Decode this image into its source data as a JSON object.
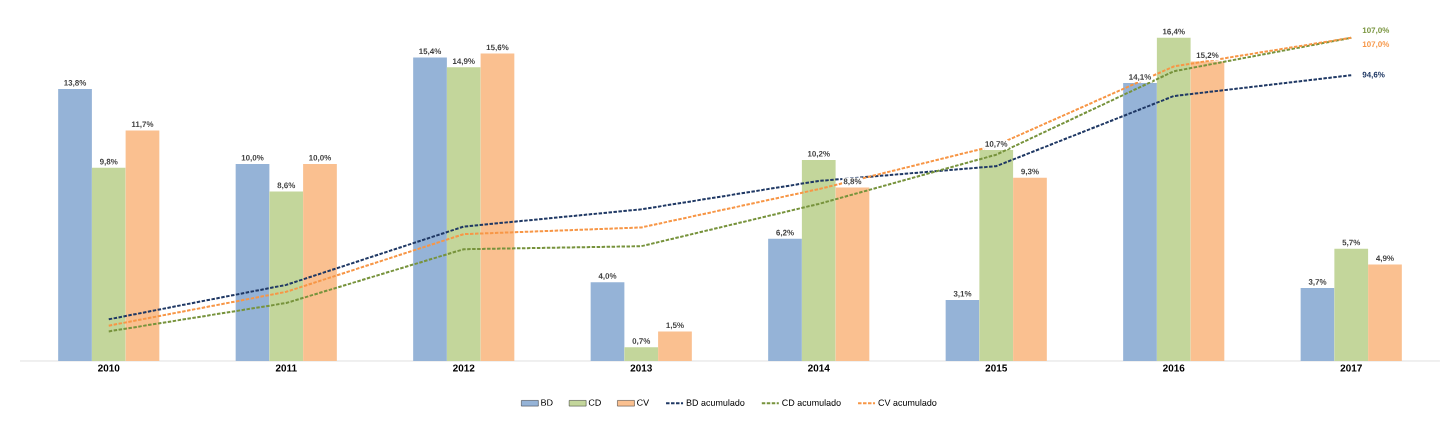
{
  "chart_data": {
    "type": "bar",
    "categories": [
      "2010",
      "2011",
      "2012",
      "2013",
      "2014",
      "2015",
      "2016",
      "2017"
    ],
    "series": [
      {
        "name": "BD",
        "color": "#95b3d7",
        "values": [
          13.8,
          10.0,
          15.4,
          4.0,
          6.2,
          3.1,
          14.1,
          3.7
        ],
        "value_labels": [
          "13,8%",
          "10,0%",
          "15,4%",
          "4,0%",
          "6,2%",
          "3,1%",
          "14,1%",
          "3,7%"
        ]
      },
      {
        "name": "CD",
        "color": "#c3d69b",
        "values": [
          9.8,
          8.6,
          14.9,
          0.7,
          10.2,
          10.7,
          16.4,
          5.7
        ],
        "value_labels": [
          "9,8%",
          "8,6%",
          "14,9%",
          "0,7%",
          "10,2%",
          "10,7%",
          "16,4%",
          "5,7%"
        ]
      },
      {
        "name": "CV",
        "color": "#fac090",
        "values": [
          11.7,
          10.0,
          15.6,
          1.5,
          8.8,
          9.3,
          15.2,
          4.9
        ],
        "value_labels": [
          "11,7%",
          "10,0%",
          "15,6%",
          "1,5%",
          "8,8%",
          "9,3%",
          "15,2%",
          "4,9%"
        ]
      },
      {
        "name": "BD acumulado",
        "type": "line",
        "axis": "y2",
        "line_style": "dashed",
        "color": "#1f3864",
        "values": [
          13.8,
          25.2,
          44.5,
          50.2,
          59.6,
          64.5,
          87.7,
          94.6
        ],
        "value_labels": [
          null,
          null,
          null,
          null,
          null,
          null,
          null,
          "94,6%"
        ]
      },
      {
        "name": "CD acumulado",
        "type": "line",
        "axis": "y2",
        "line_style": "dashed",
        "color": "#77933c",
        "values": [
          9.8,
          19.2,
          37.0,
          38.0,
          52.0,
          68.3,
          95.9,
          107.0
        ],
        "value_labels": [
          null,
          null,
          null,
          null,
          null,
          null,
          null,
          "107,0%"
        ]
      },
      {
        "name": "CV acumulado",
        "type": "line",
        "axis": "y2",
        "line_style": "dashed",
        "color": "#f79646",
        "values": [
          11.7,
          22.9,
          42.0,
          44.2,
          56.9,
          71.4,
          97.5,
          107.0
        ],
        "value_labels": [
          null,
          null,
          null,
          null,
          null,
          null,
          null,
          "107,0%"
        ]
      }
    ],
    "tick_labels": "x",
    "legend": "bottom"
  }
}
